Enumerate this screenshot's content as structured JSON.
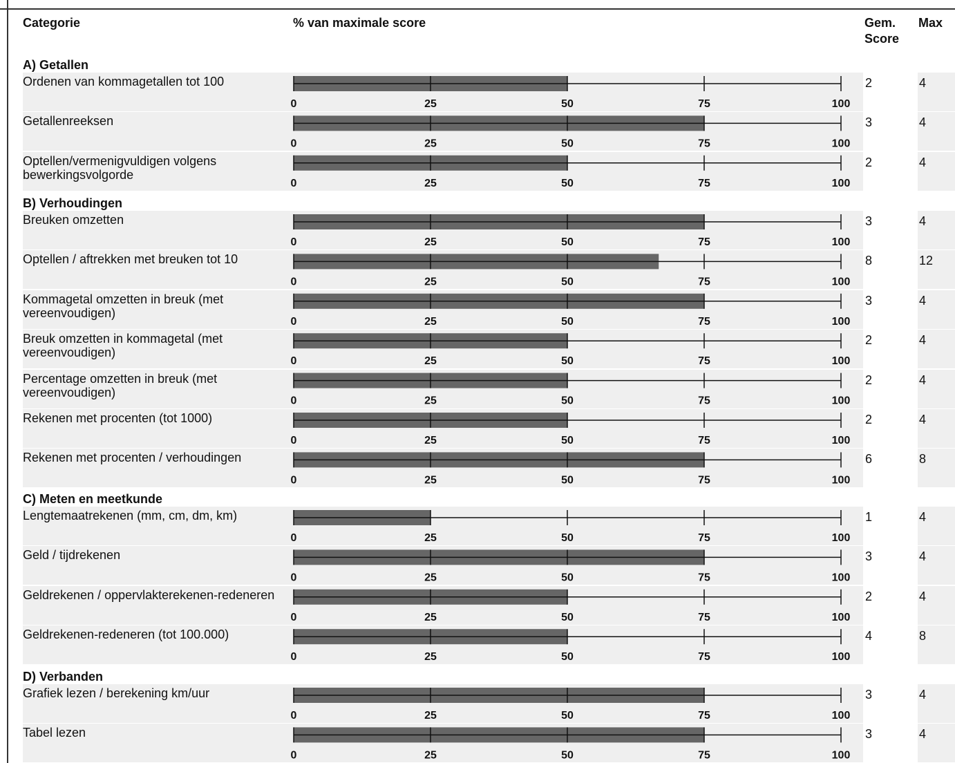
{
  "headers": {
    "category": "Categorie",
    "percent": "% van maximale score",
    "avg_score": "Gem. Score",
    "max": "Max"
  },
  "chart_data": {
    "type": "bar",
    "xlabel": "% van maximale score",
    "xlim": [
      0,
      100
    ],
    "ticks": [
      0,
      25,
      50,
      75,
      100
    ],
    "bar_color": "#666666",
    "sections": [
      {
        "title": "A) Getallen",
        "rows": [
          {
            "label": "Ordenen van kommagetallen tot 100",
            "score": 2,
            "max": 4,
            "percent": 50
          },
          {
            "label": "Getallenreeksen",
            "score": 3,
            "max": 4,
            "percent": 75
          },
          {
            "label": "Optellen/vermenigvuldigen volgens bewerkingsvolgorde",
            "score": 2,
            "max": 4,
            "percent": 50
          }
        ]
      },
      {
        "title": "B) Verhoudingen",
        "rows": [
          {
            "label": "Breuken omzetten",
            "score": 3,
            "max": 4,
            "percent": 75
          },
          {
            "label": "Optellen / aftrekken met breuken tot 10",
            "score": 8,
            "max": 12,
            "percent": 66.7
          },
          {
            "label": "Kommagetal omzetten in breuk (met vereenvoudigen)",
            "score": 3,
            "max": 4,
            "percent": 75
          },
          {
            "label": "Breuk omzetten in kommagetal (met vereenvoudigen)",
            "score": 2,
            "max": 4,
            "percent": 50
          },
          {
            "label": "Percentage omzetten in breuk (met vereenvoudigen)",
            "score": 2,
            "max": 4,
            "percent": 50
          },
          {
            "label": "Rekenen met procenten (tot 1000)",
            "score": 2,
            "max": 4,
            "percent": 50
          },
          {
            "label": "Rekenen met procenten / verhoudingen",
            "score": 6,
            "max": 8,
            "percent": 75
          }
        ]
      },
      {
        "title": "C) Meten en meetkunde",
        "rows": [
          {
            "label": "Lengtemaatrekenen (mm, cm, dm, km)",
            "score": 1,
            "max": 4,
            "percent": 25
          },
          {
            "label": "Geld / tijdrekenen",
            "score": 3,
            "max": 4,
            "percent": 75
          },
          {
            "label": "Geldrekenen / oppervlakterekenen-redeneren",
            "score": 2,
            "max": 4,
            "percent": 50
          },
          {
            "label": "Geldrekenen-redeneren (tot 100.000)",
            "score": 4,
            "max": 8,
            "percent": 50
          }
        ]
      },
      {
        "title": "D) Verbanden",
        "rows": [
          {
            "label": "Grafiek lezen / berekening km/uur",
            "score": 3,
            "max": 4,
            "percent": 75
          },
          {
            "label": "Tabel lezen",
            "score": 3,
            "max": 4,
            "percent": 75
          }
        ]
      }
    ]
  }
}
